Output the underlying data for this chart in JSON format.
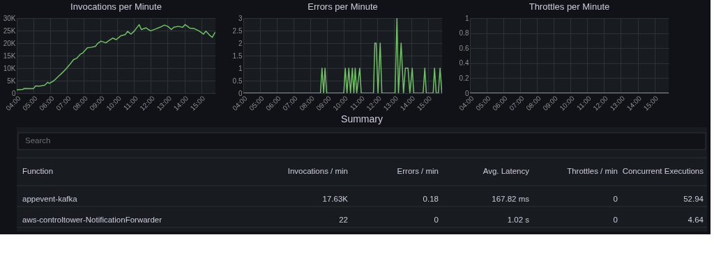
{
  "chart_data": [
    {
      "type": "line",
      "title": "Invocations per Minute",
      "grid": true,
      "x": [
        4.0,
        4.37,
        4.44,
        4.99,
        5.13,
        5.33,
        5.67,
        5.84,
        5.95,
        6.22,
        6.5,
        6.63,
        6.9,
        7.18,
        7.39,
        7.59,
        7.8,
        7.94,
        8.21,
        8.42,
        8.69,
        8.83,
        9.03,
        9.31,
        9.51,
        9.72,
        9.93,
        10.2,
        10.47,
        10.61,
        10.82,
        11.02,
        11.3,
        11.43,
        11.71,
        11.98,
        12.26,
        12.53,
        12.81,
        13.01,
        13.22,
        13.36,
        13.63,
        13.9,
        14.04,
        14.32,
        14.58,
        14.86,
        15.14,
        15.28,
        15.48,
        15.66,
        15.82
      ],
      "series": [
        {
          "color": "#73bf69",
          "values": [
            1300,
            1500,
            1900,
            1800,
            2900,
            2800,
            3200,
            4300,
            3900,
            5000,
            6800,
            7600,
            9400,
            11600,
            13400,
            14000,
            15600,
            16100,
            18100,
            18300,
            18700,
            19900,
            20800,
            20100,
            21100,
            22000,
            21400,
            22900,
            23400,
            24700,
            23600,
            24900,
            27400,
            25400,
            26100,
            24900,
            25600,
            26300,
            27200,
            26700,
            25400,
            26300,
            26700,
            26300,
            27400,
            26000,
            25800,
            24900,
            23600,
            24800,
            23300,
            22300,
            24200
          ]
        }
      ],
      "xlim": [
        4,
        15.85
      ],
      "xticks": [
        {
          "value": 4,
          "label": "04:00"
        },
        {
          "value": 5,
          "label": "05:00"
        },
        {
          "value": 6,
          "label": "06:00"
        },
        {
          "value": 7,
          "label": "07:00"
        },
        {
          "value": 8,
          "label": "08:00"
        },
        {
          "value": 9,
          "label": "09:00"
        },
        {
          "value": 10,
          "label": "10:00"
        },
        {
          "value": 11,
          "label": "11:00"
        },
        {
          "value": 12,
          "label": "12:00"
        },
        {
          "value": 13,
          "label": "13:00"
        },
        {
          "value": 14,
          "label": "14:00"
        },
        {
          "value": 15,
          "label": "15:00"
        }
      ],
      "ylim": [
        0,
        30000
      ],
      "yticks": [
        0,
        {
          "value": 5000,
          "label": "5K"
        },
        {
          "value": 10000,
          "label": "10K"
        },
        {
          "value": 15000,
          "label": "15K"
        },
        {
          "value": 20000,
          "label": "20K"
        },
        {
          "value": 25000,
          "label": "25K"
        },
        {
          "value": 30000,
          "label": "30K"
        }
      ]
    },
    {
      "type": "line",
      "title": "Errors per Minute",
      "grid": true,
      "x": [
        4.0,
        8.6,
        8.69,
        8.79,
        8.87,
        8.97,
        9.99,
        10.08,
        10.18,
        10.29,
        10.39,
        10.5,
        10.59,
        10.67,
        10.76,
        10.94,
        11.03,
        11.76,
        11.84,
        11.92,
        12.03,
        12.16,
        12.26,
        13.05,
        13.16,
        13.25,
        13.41,
        13.55,
        13.66,
        13.82,
        13.93,
        14.07,
        14.16,
        14.72,
        14.82,
        14.91,
        15.32,
        15.4,
        15.5,
        15.63,
        15.73,
        15.84
      ],
      "series": [
        {
          "color": "#73bf69",
          "values": [
            0,
            0,
            1,
            0,
            1,
            0,
            0,
            1,
            0,
            1,
            0,
            1,
            0,
            1,
            0,
            1,
            0,
            0,
            2,
            2,
            0,
            2,
            0,
            0,
            3,
            0,
            2,
            0,
            1,
            1,
            0,
            1,
            0,
            0,
            1,
            0,
            0,
            1,
            0,
            0,
            1,
            0
          ]
        }
      ],
      "xlim": [
        4,
        15.85
      ],
      "xticks": [
        {
          "value": 4,
          "label": "04:00"
        },
        {
          "value": 5,
          "label": "05:00"
        },
        {
          "value": 6,
          "label": "06:00"
        },
        {
          "value": 7,
          "label": "07:00"
        },
        {
          "value": 8,
          "label": "08:00"
        },
        {
          "value": 9,
          "label": "09:00"
        },
        {
          "value": 10,
          "label": "10:00"
        },
        {
          "value": 11,
          "label": "11:00"
        },
        {
          "value": 12,
          "label": "12:00"
        },
        {
          "value": 13,
          "label": "13:00"
        },
        {
          "value": 14,
          "label": "14:00"
        },
        {
          "value": 15,
          "label": "15:00"
        }
      ],
      "ylim": [
        0,
        3
      ],
      "yticks": [
        0,
        0.5,
        1,
        1.5,
        2,
        2.5,
        3
      ]
    },
    {
      "type": "line",
      "title": "Throttles per Minute",
      "grid": true,
      "x": [
        4.0,
        15.84
      ],
      "series": [
        {
          "color": "#73bf69",
          "values": [
            0,
            0
          ]
        }
      ],
      "xlim": [
        4,
        15.85
      ],
      "xticks": [
        {
          "value": 4,
          "label": "04:00"
        },
        {
          "value": 5,
          "label": "05:00"
        },
        {
          "value": 6,
          "label": "06:00"
        },
        {
          "value": 7,
          "label": "07:00"
        },
        {
          "value": 8,
          "label": "08:00"
        },
        {
          "value": 9,
          "label": "09:00"
        },
        {
          "value": 10,
          "label": "10:00"
        },
        {
          "value": 11,
          "label": "11:00"
        },
        {
          "value": 12,
          "label": "12:00"
        },
        {
          "value": 13,
          "label": "13:00"
        },
        {
          "value": 14,
          "label": "14:00"
        },
        {
          "value": 15,
          "label": "15:00"
        }
      ],
      "ylim": [
        0,
        1
      ],
      "yticks": [
        0,
        0.2,
        0.4,
        0.6,
        0.8,
        1
      ]
    },
    {
      "type": "other",
      "title": "Summary",
      "annotations": [
        "Search",
        "Function",
        "Invocations / min",
        "Errors / min",
        "Avg. Latency",
        "Throttles / min",
        "Concurrent Executions",
        "appevent-kafka",
        "17.63K",
        "0.18",
        "167.82 ms",
        "0",
        "52.94",
        "aws-controltower-NotificationForwarder",
        "22",
        "0",
        "1.02 s",
        "0",
        "4.64"
      ]
    }
  ]
}
